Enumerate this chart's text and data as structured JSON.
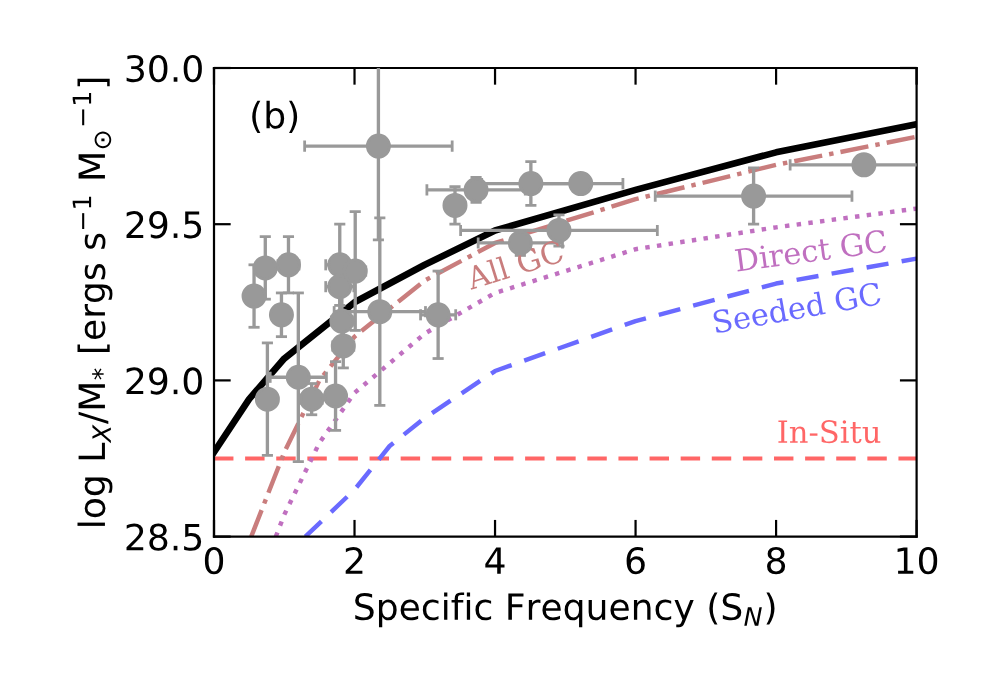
{
  "chart_data": {
    "type": "line",
    "annotations": [
      "(b)"
    ],
    "xlabel": "Specific Frequency (S$_{N}$)",
    "ylabel": "log L$_{X}$/M$_{*}$ [ergs s$^{−1}$ M$_{⊙}$$^{−1}$]",
    "xlim": [
      0,
      10
    ],
    "ylim": [
      28.5,
      30.0
    ],
    "xticks": [
      0,
      2,
      4,
      6,
      8,
      10
    ],
    "yticks": [
      {
        "value": 28.5,
        "label": "28.5"
      },
      {
        "value": 29.0,
        "label": "29.0"
      },
      {
        "value": 29.5,
        "label": "29.5"
      },
      {
        "value": 30.0,
        "label": "30.0"
      }
    ],
    "grid": false,
    "legend": false,
    "series": [
      {
        "type": "scatter",
        "color": "#999999",
        "marker": "circle",
        "x": [
          0.57,
          0.73,
          1.06,
          0.96,
          0.76,
          1.2,
          1.39,
          1.73,
          1.79,
          1.79,
          1.82,
          1.84,
          2.01,
          2.34,
          2.36,
          3.19,
          3.43,
          3.73,
          4.51,
          5.22,
          4.36,
          4.91,
          7.68,
          9.25
        ],
        "values": [
          29.27,
          29.36,
          29.37,
          29.21,
          28.94,
          29.01,
          28.94,
          28.95,
          29.37,
          29.3,
          29.19,
          29.11,
          29.35,
          29.75,
          29.22,
          29.21,
          29.56,
          29.61,
          29.63,
          29.63,
          29.44,
          29.48,
          29.59,
          29.69
        ],
        "errors": [
          0.1,
          0.1,
          0.09,
          0.07,
          0.18,
          0.27,
          0.05,
          0.11,
          0.13,
          0.1,
          0.1,
          0.07,
          0.19,
          0.3,
          0.3,
          0.14,
          0.06,
          0.04,
          0.07,
          0.03,
          0.04,
          0.05,
          0.09,
          0.03
        ],
        "xerrors": [
          0.1,
          0.1,
          0.15,
          0.1,
          0.1,
          0.4,
          0.15,
          0.1,
          0.2,
          0.2,
          0.15,
          0.15,
          0.15,
          1.05,
          0.65,
          0.25,
          0.1,
          0.7,
          0.7,
          0.6,
          0.6,
          1.4,
          1.4,
          1.05
        ]
      },
      {
        "color": "#000000",
        "line_style": "solid",
        "x": [
          0,
          0.5,
          1,
          2,
          3,
          4,
          6,
          8,
          10
        ],
        "values": [
          28.77,
          28.94,
          29.07,
          29.25,
          29.37,
          29.48,
          29.61,
          29.73,
          29.82
        ]
      },
      {
        "name": "All GC",
        "color": "#c97d7d",
        "line_style": "dashdot",
        "x": [
          0.53,
          1,
          1.5,
          2,
          3,
          4,
          6,
          8,
          10
        ],
        "values": [
          28.5,
          28.77,
          29.0,
          29.14,
          29.32,
          29.44,
          29.58,
          29.69,
          29.78
        ]
      },
      {
        "name": "Direct GC",
        "color": "#c070c0",
        "line_style": "dotted",
        "x": [
          0.88,
          1,
          1.5,
          2,
          3,
          4,
          6,
          8,
          10
        ],
        "values": [
          28.5,
          28.57,
          28.8,
          28.96,
          29.15,
          29.28,
          29.42,
          29.49,
          29.55
        ]
      },
      {
        "name": "Seeded GC",
        "color": "#6a6aff",
        "line_style": "dashed",
        "x": [
          1.3,
          2,
          2.5,
          3,
          4,
          6,
          8,
          10
        ],
        "values": [
          28.5,
          28.65,
          28.79,
          28.88,
          29.03,
          29.19,
          29.31,
          29.39
        ]
      }
    ],
    "ref_lines": [
      {
        "axis": "y",
        "value": 28.75,
        "label": "In-Situ",
        "color": "#ff6666",
        "line_style": "dashed"
      }
    ]
  }
}
